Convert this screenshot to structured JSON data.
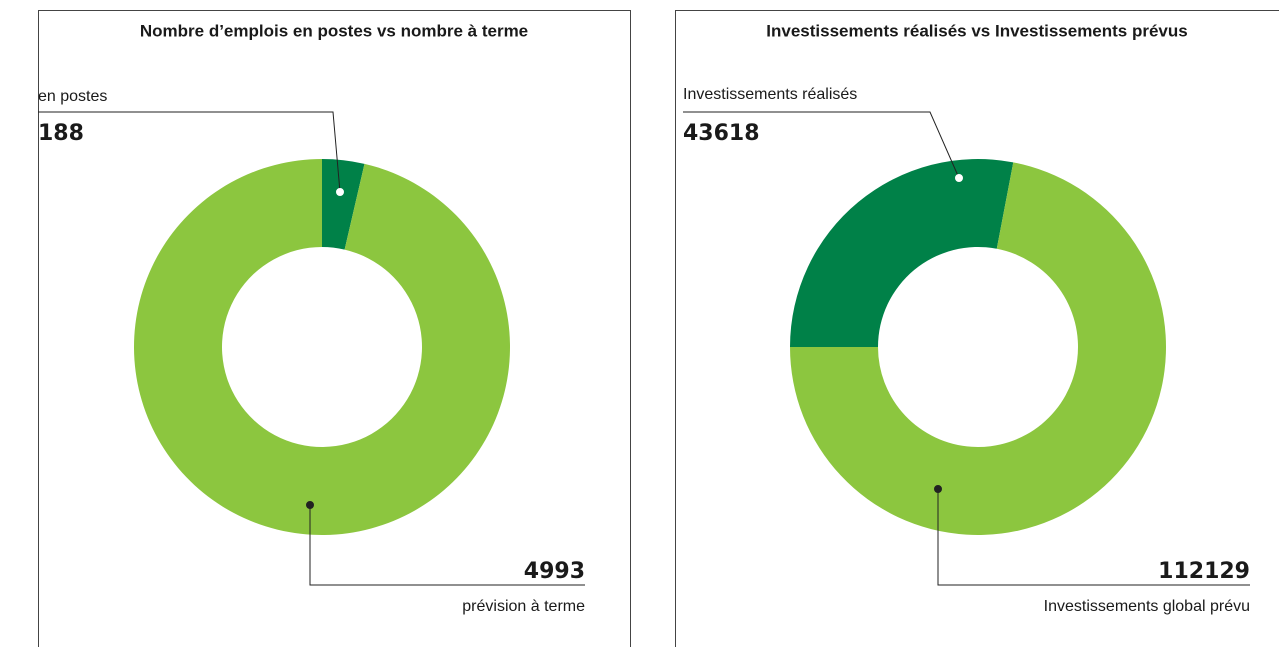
{
  "chart_data": [
    {
      "type": "pie",
      "title": "Nombre d’emplois en postes vs nombre à terme",
      "categories": [
        "en postes",
        "prévision à terme"
      ],
      "values": [
        188,
        4993
      ],
      "colors": [
        "#008148",
        "#8cc63f"
      ],
      "start_angle": 0
    },
    {
      "type": "pie",
      "title": "Investissements réalisés vs Investissements prévus",
      "categories": [
        "Investissements réalisés",
        "Investissements global prévu"
      ],
      "values": [
        43618,
        112129
      ],
      "colors": [
        "#008148",
        "#8cc63f"
      ],
      "start_angle": 270
    }
  ]
}
